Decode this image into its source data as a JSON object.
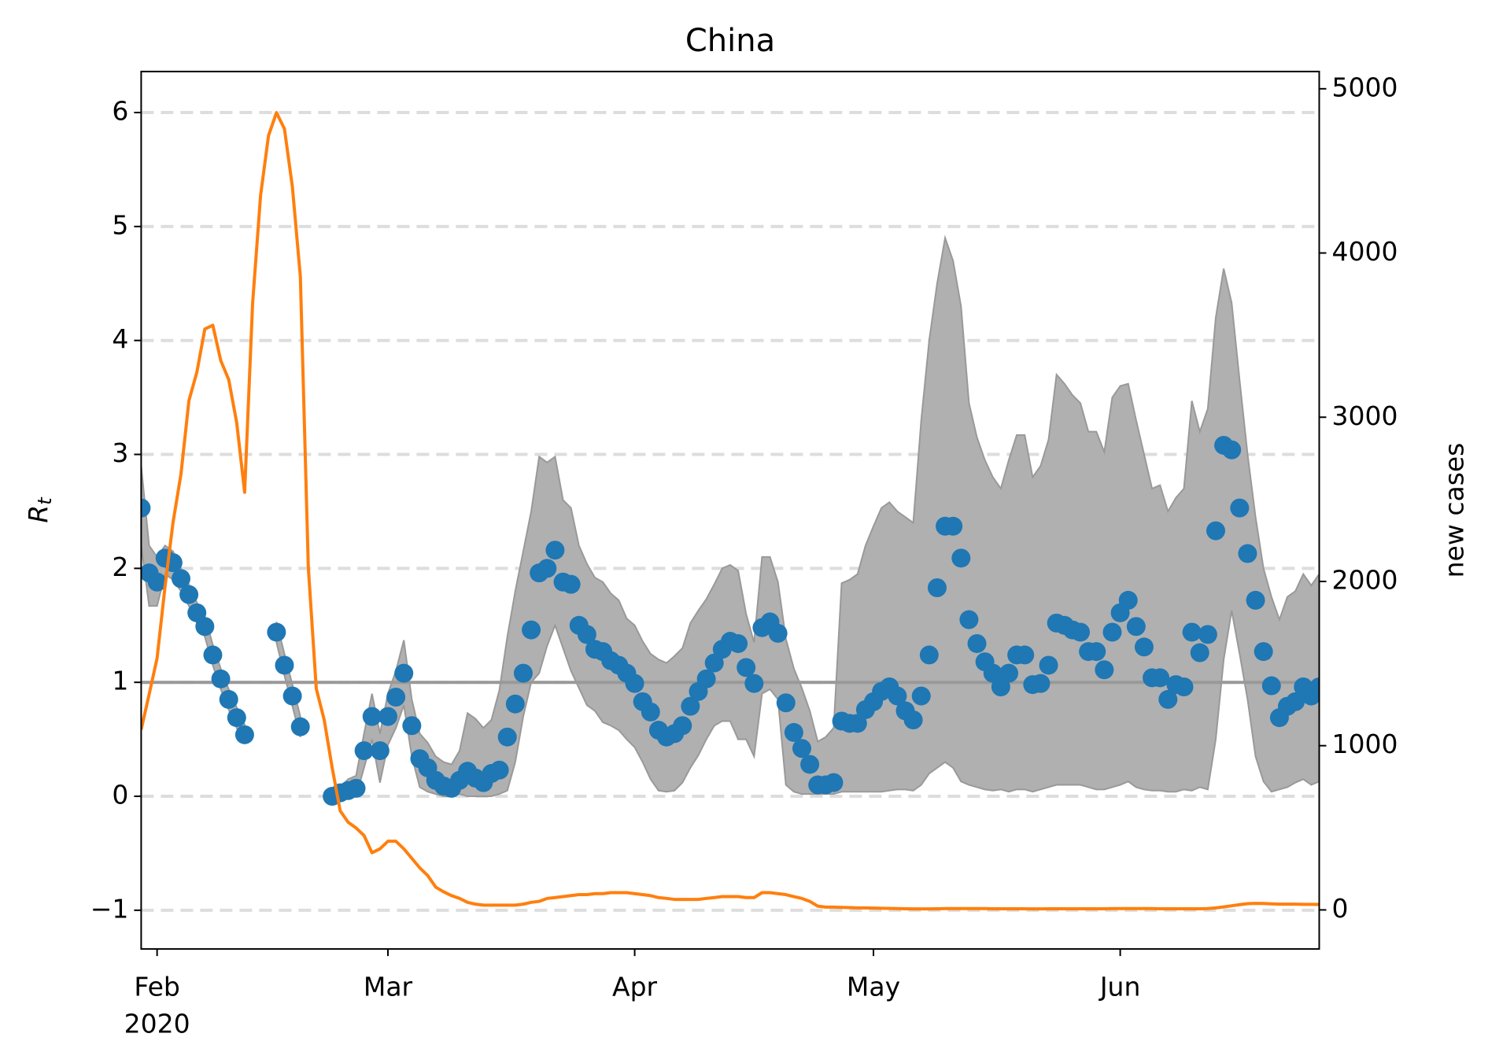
{
  "chart_data": {
    "type": "combo",
    "title": "China",
    "ylabel": "Rt",
    "y2label": "new cases",
    "x": [
      30,
      31,
      32,
      33,
      34,
      35,
      36,
      37,
      38,
      39,
      40,
      41,
      42,
      43,
      44,
      45,
      46,
      47,
      48,
      49,
      50,
      51,
      52,
      53,
      54,
      55,
      56,
      57,
      58,
      59,
      60,
      61,
      62,
      63,
      64,
      65,
      66,
      67,
      68,
      69,
      70,
      71,
      72,
      73,
      74,
      75,
      76,
      77,
      78,
      79,
      80,
      81,
      82,
      83,
      84,
      85,
      86,
      87,
      88,
      89,
      90,
      91,
      92,
      93,
      94,
      95,
      96,
      97,
      98,
      99,
      100,
      101,
      102,
      103,
      104,
      105,
      106,
      107,
      108,
      109,
      110,
      111,
      112,
      113,
      114,
      115,
      116,
      117,
      118,
      119,
      120,
      121,
      122,
      123,
      124,
      125,
      126,
      127,
      128,
      129,
      130,
      131,
      132,
      133,
      134,
      135,
      136,
      137,
      138,
      139,
      140,
      141,
      142,
      143,
      144,
      145,
      146,
      147,
      148,
      149,
      150,
      151,
      152,
      153,
      154,
      155,
      156,
      157,
      158,
      159,
      160,
      161,
      162,
      163,
      164,
      165,
      166,
      167,
      168,
      169,
      170,
      171,
      172,
      173,
      174,
      175,
      176,
      177,
      178
    ],
    "xlim": [
      30,
      178
    ],
    "xticks": [
      {
        "value": 32,
        "label": "Feb"
      },
      {
        "value": 61,
        "label": "Mar"
      },
      {
        "value": 92,
        "label": "Apr"
      },
      {
        "value": 122,
        "label": "May"
      },
      {
        "value": 153,
        "label": "Jun"
      }
    ],
    "x_year_label": "2020",
    "ylim": [
      -1.34,
      6.36
    ],
    "yticks": [
      {
        "value": -1,
        "label": "−1"
      },
      0,
      1,
      2,
      3,
      4,
      5,
      6
    ],
    "y2lim": [
      -238,
      5105
    ],
    "y2ticks": [
      0,
      1000,
      2000,
      3000,
      4000,
      5000
    ],
    "grid": true,
    "reference_line": {
      "value": 1,
      "color": "#999999"
    },
    "series": [
      {
        "type": "band",
        "color": "#b0b0b0",
        "edgecolor": "#999999",
        "upper": [
          2.9,
          2.2,
          2.1,
          2.2,
          2.15,
          2.0,
          1.86,
          1.7,
          1.58,
          1.33,
          1.12,
          0.94,
          0.78,
          0.63,
          null,
          null,
          null,
          1.53,
          1.25,
          0.98,
          0.7,
          null,
          null,
          null,
          0.05,
          0.08,
          0.15,
          0.18,
          0.55,
          0.9,
          0.55,
          0.9,
          1.1,
          1.37,
          0.85,
          0.55,
          0.47,
          0.35,
          0.3,
          0.28,
          0.4,
          0.73,
          0.68,
          0.6,
          0.67,
          0.93,
          1.4,
          1.8,
          2.15,
          2.5,
          2.98,
          2.93,
          2.98,
          2.6,
          2.53,
          2.2,
          2.04,
          1.92,
          1.88,
          1.78,
          1.72,
          1.56,
          1.5,
          1.36,
          1.25,
          1.2,
          1.17,
          1.23,
          1.3,
          1.52,
          1.63,
          1.73,
          1.86,
          2.0,
          2.03,
          1.98,
          1.6,
          1.35,
          2.1,
          2.1,
          1.88,
          1.38,
          1.12,
          0.95,
          0.75,
          0.48,
          0.52,
          0.6,
          1.87,
          1.9,
          1.95,
          2.2,
          2.37,
          2.53,
          2.58,
          2.5,
          2.45,
          2.4,
          3.3,
          4.0,
          4.5,
          4.9,
          4.7,
          4.3,
          3.45,
          3.15,
          2.95,
          2.8,
          2.7,
          2.95,
          3.17,
          3.17,
          2.8,
          2.9,
          3.13,
          3.7,
          3.62,
          3.52,
          3.45,
          3.2,
          3.2,
          3.02,
          3.5,
          3.6,
          3.62,
          3.3,
          3.0,
          2.7,
          2.73,
          2.5,
          2.62,
          2.7,
          3.47,
          3.2,
          3.4,
          4.2,
          4.63,
          4.33,
          3.65,
          3.0,
          2.45,
          2.0,
          1.75,
          1.55,
          1.75,
          1.8,
          1.95,
          1.85,
          1.95
        ],
        "lower": [
          2.2,
          1.67,
          1.67,
          1.95,
          1.9,
          1.8,
          1.67,
          1.52,
          1.4,
          1.15,
          0.94,
          0.76,
          0.6,
          0.46,
          null,
          null,
          null,
          1.35,
          1.06,
          0.79,
          0.52,
          null,
          null,
          null,
          0,
          0,
          0,
          0,
          0.25,
          0.5,
          0.12,
          0.45,
          0.6,
          0.8,
          0.35,
          0.08,
          0.04,
          0.02,
          0,
          0,
          0.02,
          0,
          0,
          0,
          0,
          0.02,
          0.05,
          0.3,
          0.7,
          1.0,
          1.08,
          1.32,
          1.5,
          1.3,
          1.1,
          0.95,
          0.8,
          0.75,
          0.65,
          0.62,
          0.58,
          0.5,
          0.43,
          0.3,
          0.15,
          0.05,
          0.04,
          0.05,
          0.12,
          0.25,
          0.36,
          0.5,
          0.62,
          0.66,
          0.66,
          0.5,
          0.5,
          0.35,
          0.9,
          0.94,
          0.85,
          0.1,
          0.04,
          0.02,
          0.02,
          0.02,
          0.02,
          0.02,
          0.04,
          0.04,
          0.04,
          0.04,
          0.04,
          0.04,
          0.05,
          0.06,
          0.06,
          0.05,
          0.1,
          0.2,
          0.25,
          0.3,
          0.25,
          0.13,
          0.1,
          0.08,
          0.06,
          0.05,
          0.06,
          0.04,
          0.06,
          0.06,
          0.04,
          0.06,
          0.08,
          0.1,
          0.1,
          0.1,
          0.1,
          0.08,
          0.06,
          0.06,
          0.08,
          0.1,
          0.13,
          0.08,
          0.06,
          0.05,
          0.05,
          0.04,
          0.04,
          0.06,
          0.05,
          0.08,
          0.06,
          0.5,
          1.2,
          1.63,
          1.25,
          0.85,
          0.35,
          0.13,
          0.04,
          0.06,
          0.08,
          0.12,
          0.15,
          0.1,
          0.13
        ]
      },
      {
        "type": "scatter",
        "color": "#1f77b4",
        "values": [
          2.53,
          1.96,
          1.88,
          2.09,
          2.05,
          1.91,
          1.77,
          1.61,
          1.49,
          1.24,
          1.03,
          0.85,
          0.69,
          0.54,
          null,
          null,
          null,
          1.44,
          1.15,
          0.88,
          0.61,
          null,
          null,
          null,
          0,
          0.03,
          0.05,
          0.07,
          0.4,
          0.7,
          0.4,
          0.7,
          0.87,
          1.08,
          0.62,
          0.33,
          0.25,
          0.14,
          0.09,
          0.07,
          0.14,
          0.22,
          0.16,
          0.12,
          0.2,
          0.23,
          0.52,
          0.81,
          1.08,
          1.46,
          1.96,
          2.0,
          2.16,
          1.88,
          1.86,
          1.5,
          1.42,
          1.29,
          1.27,
          1.19,
          1.15,
          1.08,
          0.99,
          0.83,
          0.74,
          0.58,
          0.52,
          0.55,
          0.62,
          0.79,
          0.92,
          1.03,
          1.17,
          1.29,
          1.36,
          1.34,
          1.13,
          0.99,
          1.48,
          1.53,
          1.43,
          0.82,
          0.56,
          0.42,
          0.28,
          0.1,
          0.1,
          0.12,
          0.66,
          0.64,
          0.64,
          0.76,
          0.83,
          0.92,
          0.96,
          0.88,
          0.75,
          0.67,
          0.88,
          1.24,
          1.83,
          2.37,
          2.37,
          2.09,
          1.55,
          1.34,
          1.18,
          1.08,
          0.96,
          1.08,
          1.24,
          1.24,
          0.98,
          0.99,
          1.15,
          1.52,
          1.5,
          1.46,
          1.44,
          1.27,
          1.27,
          1.11,
          1.44,
          1.61,
          1.72,
          1.49,
          1.31,
          1.04,
          1.04,
          0.85,
          0.98,
          0.96,
          1.44,
          1.26,
          1.42,
          2.33,
          3.08,
          3.04,
          2.53,
          2.13,
          1.72,
          1.27,
          0.97,
          0.69,
          0.79,
          0.83,
          0.96,
          0.88,
          0.96
        ]
      },
      {
        "type": "line",
        "axis": "y2",
        "color": "#ff7f0e",
        "values": [
          1098,
          1312,
          1533,
          1969,
          2358,
          2654,
          3101,
          3275,
          3537,
          3560,
          3345,
          3229,
          2967,
          2543,
          3693,
          4350,
          4715,
          4855,
          4756,
          4402,
          3856,
          2085,
          1347,
          1156,
          865,
          604,
          534,
          499,
          453,
          348,
          372,
          418,
          418,
          372,
          314,
          256,
          209,
          139,
          110,
          87,
          70,
          46,
          35,
          29,
          29,
          29,
          29,
          29,
          35,
          46,
          52,
          70,
          75,
          81,
          87,
          93,
          93,
          99,
          99,
          105,
          105,
          105,
          99,
          93,
          87,
          75,
          70,
          64,
          64,
          64,
          64,
          70,
          75,
          81,
          81,
          81,
          75,
          75,
          105,
          105,
          99,
          93,
          81,
          70,
          52,
          23,
          17,
          17,
          15,
          14,
          12,
          12,
          11,
          10,
          9,
          8,
          7,
          6,
          6,
          6,
          7,
          8,
          8,
          8,
          8,
          8,
          8,
          7,
          7,
          7,
          7,
          7,
          6,
          6,
          7,
          7,
          7,
          7,
          7,
          7,
          7,
          7,
          8,
          8,
          8,
          8,
          8,
          8,
          7,
          7,
          7,
          7,
          7,
          7,
          8,
          12,
          18,
          25,
          32,
          38,
          40,
          39,
          37,
          35,
          35,
          35,
          34,
          34,
          33
        ]
      }
    ]
  }
}
